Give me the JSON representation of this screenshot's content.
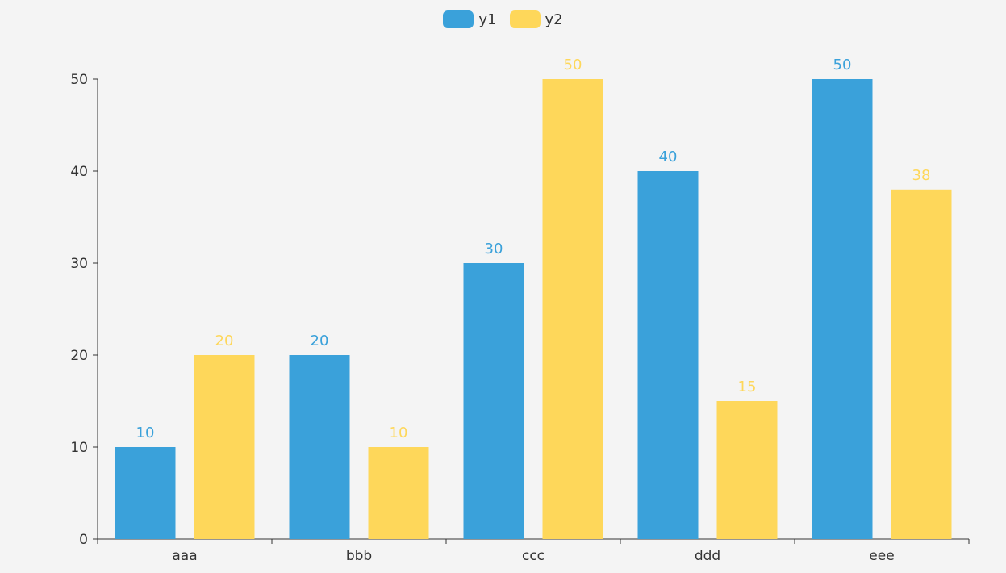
{
  "chart_data": {
    "type": "bar",
    "title": "",
    "xlabel": "",
    "ylabel": "",
    "categories": [
      "aaa",
      "bbb",
      "ccc",
      "ddd",
      "eee"
    ],
    "series": [
      {
        "name": "y1",
        "values": [
          10,
          20,
          30,
          40,
          50
        ],
        "color": "#3aa1da"
      },
      {
        "name": "y2",
        "values": [
          20,
          10,
          50,
          15,
          38
        ],
        "color": "#fed75a"
      }
    ],
    "ylim": [
      0,
      50
    ],
    "yticks": [
      0,
      10,
      20,
      30,
      40,
      50
    ],
    "grid": false,
    "legend_position": "top-center",
    "data_labels": true
  },
  "colors": {
    "background": "#f4f4f4",
    "axis": "#333333"
  }
}
